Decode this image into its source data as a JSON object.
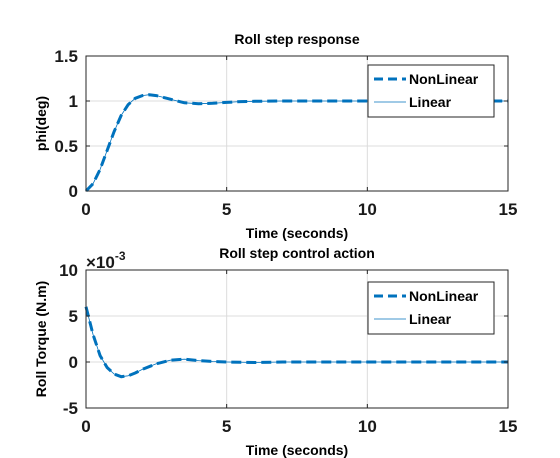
{
  "colors": {
    "series": "#0072bd",
    "grid": "#dcdcdc",
    "axis": "#262626"
  },
  "chart_data": [
    {
      "type": "line",
      "title": "Roll step response",
      "xlabel": "Time (seconds)",
      "ylabel": "phi(deg)",
      "xlim": [
        0,
        15
      ],
      "ylim": [
        0,
        1.5
      ],
      "xticks": [
        0,
        5,
        10,
        15
      ],
      "yticks": [
        0,
        0.5,
        1,
        1.5
      ],
      "xtick_labels": [
        "0",
        "5",
        "10",
        "15"
      ],
      "ytick_labels": [
        "0",
        "0.5",
        "1",
        "1.5"
      ],
      "grid": true,
      "legend_position": "top-right",
      "x": [
        0,
        0.25,
        0.5,
        0.75,
        1.0,
        1.25,
        1.5,
        1.75,
        2.0,
        2.25,
        2.5,
        2.75,
        3.0,
        3.5,
        4.0,
        4.5,
        5.0,
        5.5,
        6.0,
        7.0,
        8.0,
        9.0,
        10.0,
        11.0,
        12.0,
        13.0,
        14.0,
        15.0
      ],
      "series": [
        {
          "name": "NonLinear",
          "style": "dashed",
          "values": [
            0,
            0.08,
            0.24,
            0.45,
            0.66,
            0.84,
            0.96,
            1.03,
            1.06,
            1.07,
            1.06,
            1.04,
            1.02,
            0.98,
            0.97,
            0.975,
            0.985,
            0.993,
            0.997,
            1.0,
            1.0,
            1.0,
            1.0,
            1.0,
            1.0,
            1.0,
            1.0,
            1.0
          ]
        },
        {
          "name": "Linear",
          "style": "solid",
          "values": [
            0,
            0.08,
            0.24,
            0.45,
            0.66,
            0.84,
            0.96,
            1.03,
            1.06,
            1.07,
            1.06,
            1.04,
            1.02,
            0.98,
            0.97,
            0.975,
            0.985,
            0.993,
            0.997,
            1.0,
            1.0,
            1.0,
            1.0,
            1.0,
            1.0,
            1.0,
            1.0,
            1.0
          ]
        }
      ]
    },
    {
      "type": "line",
      "title": "Roll step control action",
      "xlabel": "Time (seconds)",
      "ylabel": "Roll Torque (N.m)",
      "y_multiplier": {
        "base": "×10",
        "exponent": "-3"
      },
      "xlim": [
        0,
        15
      ],
      "ylim": [
        -5,
        10
      ],
      "xticks": [
        0,
        5,
        10,
        15
      ],
      "yticks": [
        -5,
        0,
        5,
        10
      ],
      "xtick_labels": [
        "0",
        "5",
        "10",
        "15"
      ],
      "ytick_labels": [
        "-5",
        "0",
        "5",
        "10"
      ],
      "grid": true,
      "legend_position": "top-right",
      "x": [
        0,
        0.1,
        0.25,
        0.5,
        0.75,
        1.0,
        1.25,
        1.5,
        1.75,
        2.0,
        2.5,
        3.0,
        3.5,
        4.0,
        4.5,
        5.0,
        6.0,
        7.0,
        8.0,
        10.0,
        12.0,
        15.0
      ],
      "series": [
        {
          "name": "NonLinear",
          "style": "dashed",
          "values": [
            6.0,
            4.8,
            3.0,
            0.7,
            -0.6,
            -1.3,
            -1.6,
            -1.5,
            -1.2,
            -0.8,
            -0.2,
            0.2,
            0.3,
            0.15,
            0.05,
            0.0,
            -0.05,
            0.0,
            0.0,
            0.0,
            0.0,
            0.0
          ]
        },
        {
          "name": "Linear",
          "style": "solid",
          "values": [
            6.0,
            4.8,
            3.0,
            0.7,
            -0.6,
            -1.3,
            -1.6,
            -1.5,
            -1.2,
            -0.8,
            -0.2,
            0.2,
            0.3,
            0.15,
            0.05,
            0.0,
            -0.05,
            0.0,
            0.0,
            0.0,
            0.0,
            0.0
          ]
        }
      ]
    }
  ]
}
